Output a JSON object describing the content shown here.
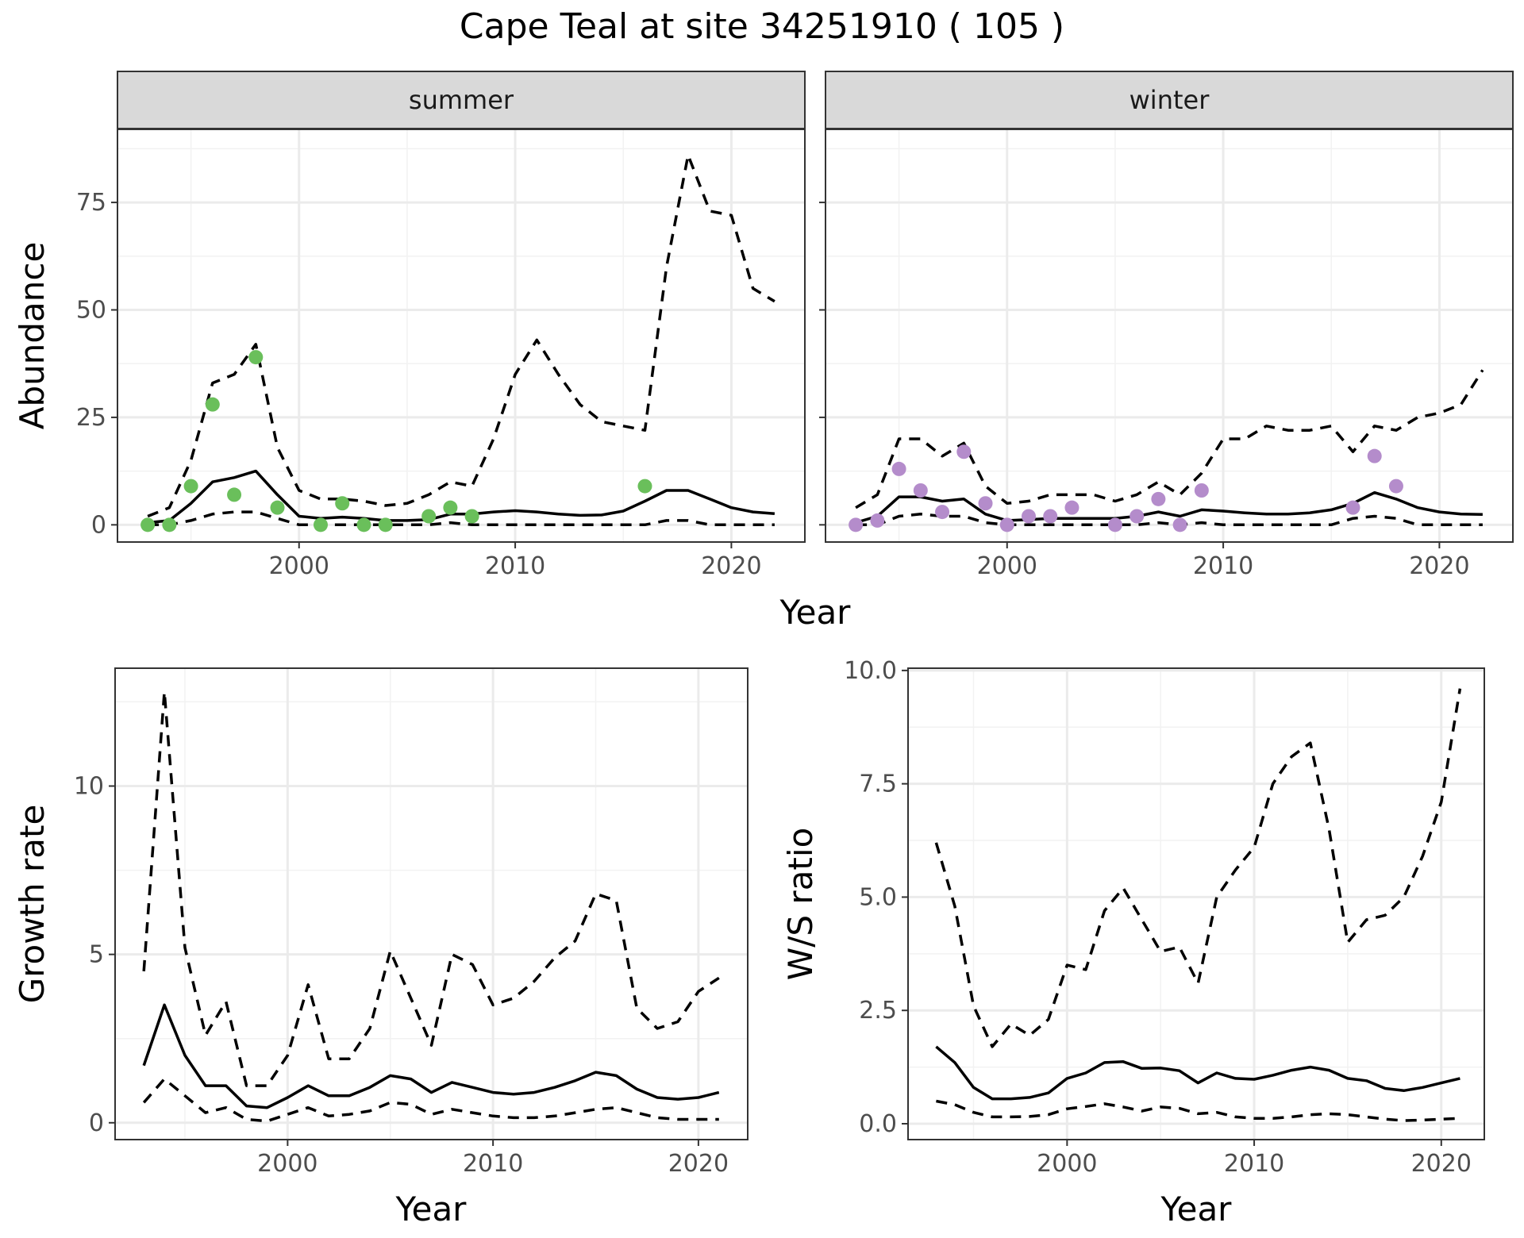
{
  "title": "Cape Teal at site 34251910 ( 105 )",
  "colors": {
    "summer_points": "#6abf5b",
    "winter_points": "#b48ccb"
  },
  "chart_data": [
    {
      "type": "line",
      "panel": "abundance",
      "facet_labels": [
        "summer",
        "winter"
      ],
      "xlabel": "Year",
      "ylabel": "Abundance",
      "xlim": [
        1991.6,
        2023.4
      ],
      "ylim": [
        -4,
        92
      ],
      "xticks": [
        2000,
        2010,
        2020
      ],
      "yticks": [
        0,
        25,
        50,
        75
      ],
      "grid": true,
      "facets": [
        {
          "label": "summer",
          "years": [
            1993,
            1994,
            1995,
            1996,
            1997,
            1998,
            1999,
            2000,
            2001,
            2002,
            2003,
            2004,
            2005,
            2006,
            2007,
            2008,
            2009,
            2010,
            2011,
            2012,
            2013,
            2014,
            2015,
            2016,
            2017,
            2018,
            2019,
            2020,
            2021,
            2022
          ],
          "mean": [
            0.5,
            1,
            5,
            10,
            11,
            12.5,
            7,
            2,
            1.5,
            1.8,
            1.5,
            1,
            1,
            1.2,
            2.5,
            2.5,
            3,
            3.3,
            3,
            2.5,
            2.2,
            2.3,
            3.2,
            5.5,
            8,
            8,
            6,
            4,
            3,
            2.6
          ],
          "upper": [
            2,
            4,
            15,
            33,
            35,
            42,
            18,
            8,
            6,
            6,
            5.5,
            4.5,
            5,
            7,
            10,
            9,
            20,
            35,
            43,
            35,
            28,
            24,
            23,
            22,
            60,
            86,
            73,
            72,
            55,
            52
          ],
          "lower": [
            0,
            0,
            1,
            2.5,
            3,
            3,
            1.5,
            0,
            0,
            0,
            0,
            0,
            0,
            0,
            0.5,
            0,
            0,
            0,
            0,
            0,
            0,
            0,
            0,
            0,
            1,
            1,
            0,
            0,
            0,
            0
          ],
          "points": [
            [
              1993,
              0
            ],
            [
              1994,
              0
            ],
            [
              1995,
              9
            ],
            [
              1996,
              28
            ],
            [
              1997,
              7
            ],
            [
              1998,
              39
            ],
            [
              1999,
              4
            ],
            [
              2001,
              0
            ],
            [
              2002,
              5
            ],
            [
              2003,
              0
            ],
            [
              2004,
              0
            ],
            [
              2006,
              2
            ],
            [
              2007,
              4
            ],
            [
              2008,
              2
            ],
            [
              2016,
              9
            ]
          ]
        },
        {
          "label": "winter",
          "years": [
            1993,
            1994,
            1995,
            1996,
            1997,
            1998,
            1999,
            2000,
            2001,
            2002,
            2003,
            2004,
            2005,
            2006,
            2007,
            2008,
            2009,
            2010,
            2011,
            2012,
            2013,
            2014,
            2015,
            2016,
            2017,
            2018,
            2019,
            2020,
            2021,
            2022
          ],
          "mean": [
            0.5,
            2,
            6.5,
            6.5,
            5.5,
            6,
            2.5,
            1,
            1.2,
            1.5,
            1.5,
            1.5,
            1.5,
            2,
            3,
            2,
            3.5,
            3.2,
            2.8,
            2.5,
            2.5,
            2.8,
            3.5,
            5,
            7.5,
            6,
            4,
            3,
            2.5,
            2.4
          ],
          "upper": [
            4,
            7,
            20,
            20,
            16,
            19,
            9,
            5,
            5.5,
            7,
            7,
            7,
            5.5,
            7,
            10,
            7,
            12,
            20,
            20,
            23,
            22,
            22,
            23,
            17,
            23,
            22,
            25,
            26,
            28,
            36
          ],
          "lower": [
            0,
            0,
            2,
            2.5,
            2,
            2,
            0.5,
            0,
            0,
            0,
            0,
            0,
            0,
            0,
            0.5,
            0,
            0.5,
            0,
            0,
            0,
            0,
            0,
            0,
            1.5,
            2,
            1.5,
            0,
            0,
            0,
            0
          ],
          "points": [
            [
              1993,
              0
            ],
            [
              1994,
              1
            ],
            [
              1995,
              13
            ],
            [
              1996,
              8
            ],
            [
              1997,
              3
            ],
            [
              1998,
              17
            ],
            [
              1999,
              5
            ],
            [
              2000,
              0
            ],
            [
              2001,
              2
            ],
            [
              2002,
              2
            ],
            [
              2003,
              4
            ],
            [
              2005,
              0
            ],
            [
              2006,
              2
            ],
            [
              2007,
              6
            ],
            [
              2008,
              0
            ],
            [
              2009,
              8
            ],
            [
              2016,
              4
            ],
            [
              2017,
              16
            ],
            [
              2018,
              9
            ]
          ]
        }
      ]
    },
    {
      "type": "line",
      "panel": "growth",
      "xlabel": "Year",
      "ylabel": "Growth rate",
      "xlim": [
        1991.6,
        2022.4
      ],
      "ylim": [
        -0.5,
        13.5
      ],
      "xticks": [
        2000,
        2010,
        2020
      ],
      "yticks": [
        0,
        5,
        10
      ],
      "grid": true,
      "years": [
        1993,
        1994,
        1995,
        1996,
        1997,
        1998,
        1999,
        2000,
        2001,
        2002,
        2003,
        2004,
        2005,
        2006,
        2007,
        2008,
        2009,
        2010,
        2011,
        2012,
        2013,
        2014,
        2015,
        2016,
        2017,
        2018,
        2019,
        2020,
        2021
      ],
      "mean": [
        1.7,
        3.5,
        2,
        1.1,
        1.1,
        0.5,
        0.45,
        0.75,
        1.1,
        0.8,
        0.8,
        1.05,
        1.4,
        1.3,
        0.9,
        1.2,
        1.05,
        0.9,
        0.85,
        0.9,
        1.05,
        1.25,
        1.5,
        1.4,
        1,
        0.75,
        0.7,
        0.75,
        0.9
      ],
      "upper": [
        4.5,
        12.8,
        5.2,
        2.6,
        3.6,
        1.1,
        1.1,
        2,
        4.1,
        1.9,
        1.9,
        2.8,
        5.1,
        3.7,
        2.3,
        5,
        4.7,
        3.5,
        3.7,
        4.2,
        4.9,
        5.4,
        6.8,
        6.6,
        3.4,
        2.8,
        3,
        3.9,
        4.3
      ],
      "lower": [
        0.6,
        1.3,
        0.8,
        0.3,
        0.45,
        0.1,
        0.05,
        0.25,
        0.45,
        0.2,
        0.25,
        0.35,
        0.6,
        0.55,
        0.25,
        0.4,
        0.3,
        0.2,
        0.15,
        0.15,
        0.2,
        0.3,
        0.4,
        0.45,
        0.3,
        0.15,
        0.1,
        0.1,
        0.1
      ]
    },
    {
      "type": "line",
      "panel": "ratio",
      "xlabel": "Year",
      "ylabel": "W/S ratio",
      "xlim": [
        1991.5,
        2022.3
      ],
      "ylim": [
        -0.35,
        10.05
      ],
      "xticks": [
        2000,
        2010,
        2020
      ],
      "yticks": [
        0.0,
        2.5,
        5.0,
        7.5,
        10.0
      ],
      "ytick_labels": [
        "0.0",
        "2.5",
        "5.0",
        "7.5",
        "10.0"
      ],
      "grid": true,
      "years": [
        1993,
        1994,
        1995,
        1996,
        1997,
        1998,
        1999,
        2000,
        2001,
        2002,
        2003,
        2004,
        2005,
        2006,
        2007,
        2008,
        2009,
        2010,
        2011,
        2012,
        2013,
        2014,
        2015,
        2016,
        2017,
        2018,
        2019,
        2020,
        2021
      ],
      "mean": [
        1.7,
        1.35,
        0.8,
        0.55,
        0.55,
        0.58,
        0.68,
        1,
        1.12,
        1.35,
        1.37,
        1.22,
        1.23,
        1.17,
        0.9,
        1.12,
        1,
        0.98,
        1.07,
        1.18,
        1.25,
        1.18,
        1,
        0.95,
        0.78,
        0.73,
        0.8,
        0.9,
        1
      ],
      "upper": [
        6.2,
        4.8,
        2.6,
        1.7,
        2.2,
        1.95,
        2.3,
        3.5,
        3.4,
        4.7,
        5.2,
        4.5,
        3.8,
        3.9,
        3.1,
        5,
        5.6,
        6.1,
        7.5,
        8.1,
        8.4,
        6.5,
        4,
        4.5,
        4.6,
        5,
        5.9,
        7.1,
        9.6
      ],
      "lower": [
        0.5,
        0.42,
        0.25,
        0.15,
        0.15,
        0.16,
        0.2,
        0.33,
        0.38,
        0.44,
        0.37,
        0.28,
        0.37,
        0.34,
        0.22,
        0.25,
        0.15,
        0.12,
        0.12,
        0.15,
        0.2,
        0.22,
        0.2,
        0.15,
        0.1,
        0.07,
        0.08,
        0.1,
        0.12
      ]
    }
  ]
}
